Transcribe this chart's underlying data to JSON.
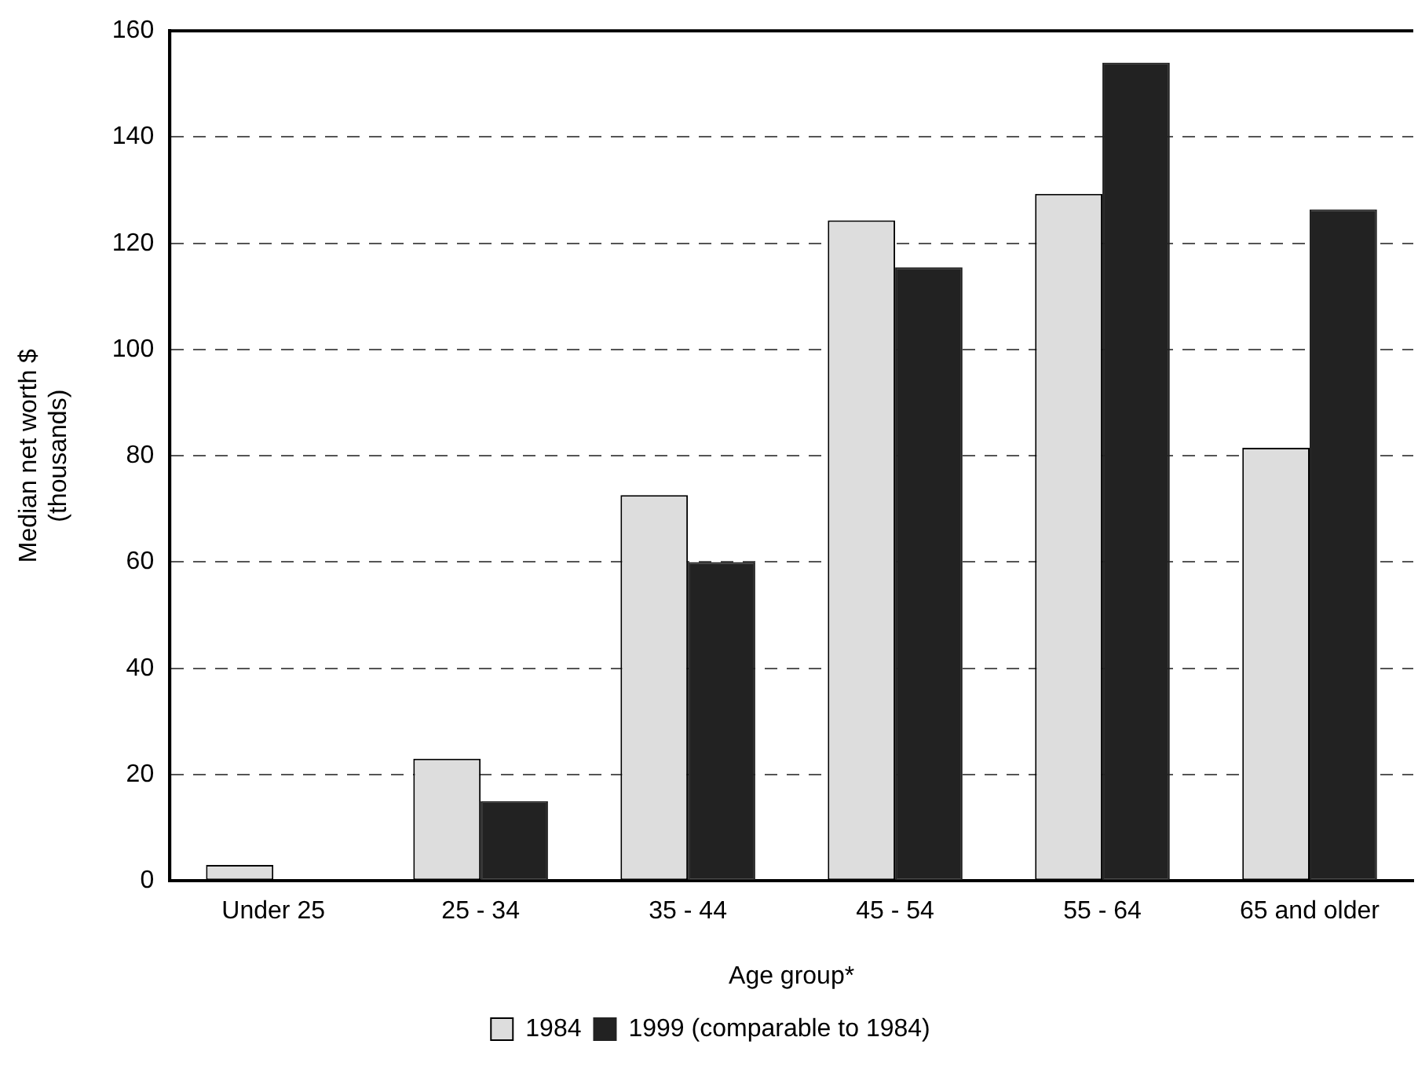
{
  "chart_data": {
    "type": "bar",
    "xlabel": "Age group*",
    "ylabel": "Median net worth $\n(thousands)",
    "categories": [
      "Under 25",
      "25 - 34",
      "35 - 44",
      "45 - 54",
      "55 - 64",
      "65 and older"
    ],
    "series": [
      {
        "name": "1984",
        "color": "#dddddd",
        "values": [
          3,
          23,
          72.6,
          124.3,
          129.3,
          81.5
        ]
      },
      {
        "name": "1999 (comparable to 1984)",
        "color": "#222222",
        "values": [
          null,
          15,
          60,
          115.5,
          154,
          126.4
        ]
      }
    ],
    "ylim": [
      0,
      160
    ],
    "yticks": [
      0,
      20,
      40,
      60,
      80,
      100,
      120,
      140,
      160
    ],
    "grid": "y",
    "legend": "bottom"
  }
}
